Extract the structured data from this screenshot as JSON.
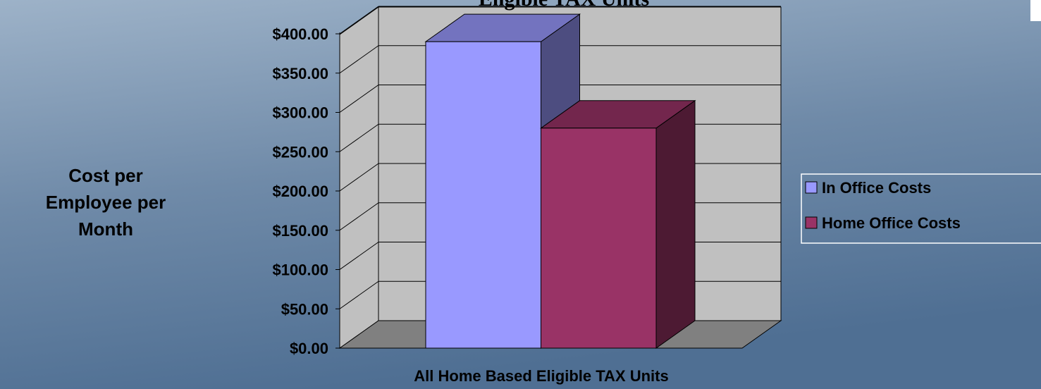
{
  "chart_data": {
    "type": "bar",
    "title": "Eligible TAX Units",
    "y_label": "Cost per Employee per Month",
    "x_label": "All Home Based Eligible TAX Units",
    "categories": [
      "All Home Based Eligible TAX Units"
    ],
    "series": [
      {
        "name": "In Office Costs",
        "color": "#9999ff",
        "values": [
          390
        ]
      },
      {
        "name": "Home Office Costs",
        "color": "#993366",
        "values": [
          280
        ]
      }
    ],
    "ylim": [
      0,
      400
    ],
    "yticks": [
      {
        "value": 0,
        "label": "$0.00"
      },
      {
        "value": 50,
        "label": "$50.00"
      },
      {
        "value": 100,
        "label": "$100.00"
      },
      {
        "value": 150,
        "label": "$150.00"
      },
      {
        "value": 200,
        "label": "$200.00"
      },
      {
        "value": 250,
        "label": "$250.00"
      },
      {
        "value": 300,
        "label": "$300.00"
      },
      {
        "value": 350,
        "label": "$350.00"
      },
      {
        "value": 400,
        "label": "$400.00"
      }
    ],
    "grid": true,
    "legend": "right"
  }
}
